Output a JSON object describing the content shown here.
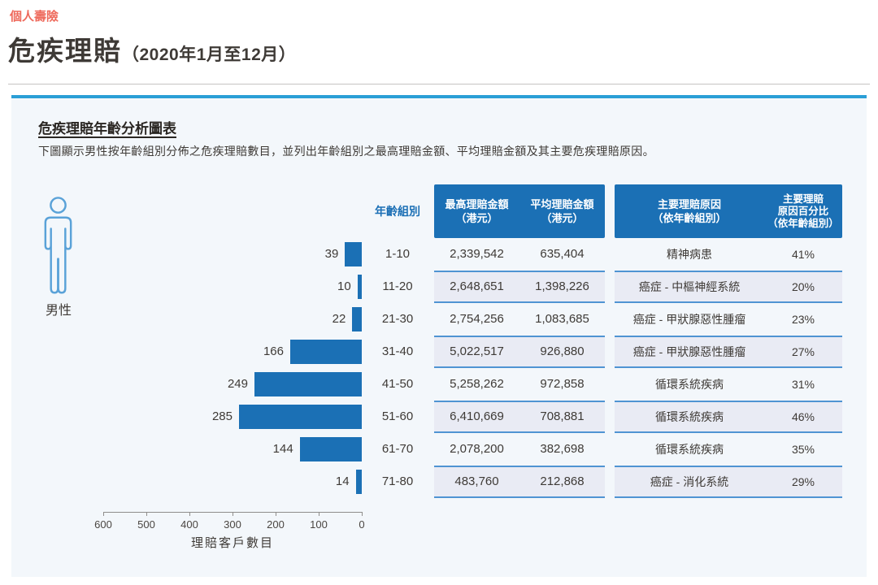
{
  "colors": {
    "accent_red": "#ee6a5c",
    "rule_blue": "#2b9fd6",
    "header_blue": "#1b70b5",
    "bar_blue": "#1b70b5",
    "header_text_blue": "#1b6fb5",
    "stripe_bg": "#e9ebf4",
    "stripe_border": "#4f94d3",
    "panel_bg": "#f3f7fb",
    "text_dark": "#3e3a36",
    "icon_blue": "#5aa2d8"
  },
  "page": {
    "eyebrow": "個人壽險",
    "title": "危疾理賠",
    "title_suffix": "（2020年1月至12月）"
  },
  "panel": {
    "heading": "危疾理賠年齡分析圖表",
    "description": "下圖顯示男性按年齡組別分佈之危疾理賠數目，並列出年齡組別之最高理賠金額、平均理賠金額及其主要危疾理賠原因。",
    "gender_label": "男性"
  },
  "table": {
    "headers": {
      "age": "年齡組別",
      "max": "最高理賠金額\n（港元）",
      "avg": "平均理賠金額\n（港元）",
      "reason": "主要理賠原因\n（依年齡組別）",
      "pct": "主要理賠\n原因百分比\n（依年齡組別）"
    },
    "rows": [
      {
        "count": 39,
        "age": "1-10",
        "max": "2,339,542",
        "avg": "635,404",
        "reason": "精神病患",
        "pct": "41%"
      },
      {
        "count": 10,
        "age": "11-20",
        "max": "2,648,651",
        "avg": "1,398,226",
        "reason": "癌症 - 中樞神經系統",
        "pct": "20%"
      },
      {
        "count": 22,
        "age": "21-30",
        "max": "2,754,256",
        "avg": "1,083,685",
        "reason": "癌症 - 甲狀腺惡性腫瘤",
        "pct": "23%"
      },
      {
        "count": 166,
        "age": "31-40",
        "max": "5,022,517",
        "avg": "926,880",
        "reason": "癌症 - 甲狀腺惡性腫瘤",
        "pct": "27%"
      },
      {
        "count": 249,
        "age": "41-50",
        "max": "5,258,262",
        "avg": "972,858",
        "reason": "循環系統疾病",
        "pct": "31%"
      },
      {
        "count": 285,
        "age": "51-60",
        "max": "6,410,669",
        "avg": "708,881",
        "reason": "循環系統疾病",
        "pct": "46%"
      },
      {
        "count": 144,
        "age": "61-70",
        "max": "2,078,200",
        "avg": "382,698",
        "reason": "循環系統疾病",
        "pct": "35%"
      },
      {
        "count": 14,
        "age": "71-80",
        "max": "483,760",
        "avg": "212,868",
        "reason": "癌症 - 消化系統",
        "pct": "29%"
      }
    ]
  },
  "chart_data": {
    "type": "bar",
    "orientation": "horizontal",
    "axis_reversed": true,
    "series_label": "男性",
    "categories": [
      "1-10",
      "11-20",
      "21-30",
      "31-40",
      "41-50",
      "51-60",
      "61-70",
      "71-80"
    ],
    "values": [
      39,
      10,
      22,
      166,
      249,
      285,
      144,
      14
    ],
    "xlabel": "理賠客戶數目",
    "ylabel": "年齡組別",
    "xlim": [
      0,
      600
    ],
    "axis_ticks": [
      600,
      500,
      400,
      300,
      200,
      100,
      0
    ],
    "grid": false,
    "legend_position": "none"
  }
}
